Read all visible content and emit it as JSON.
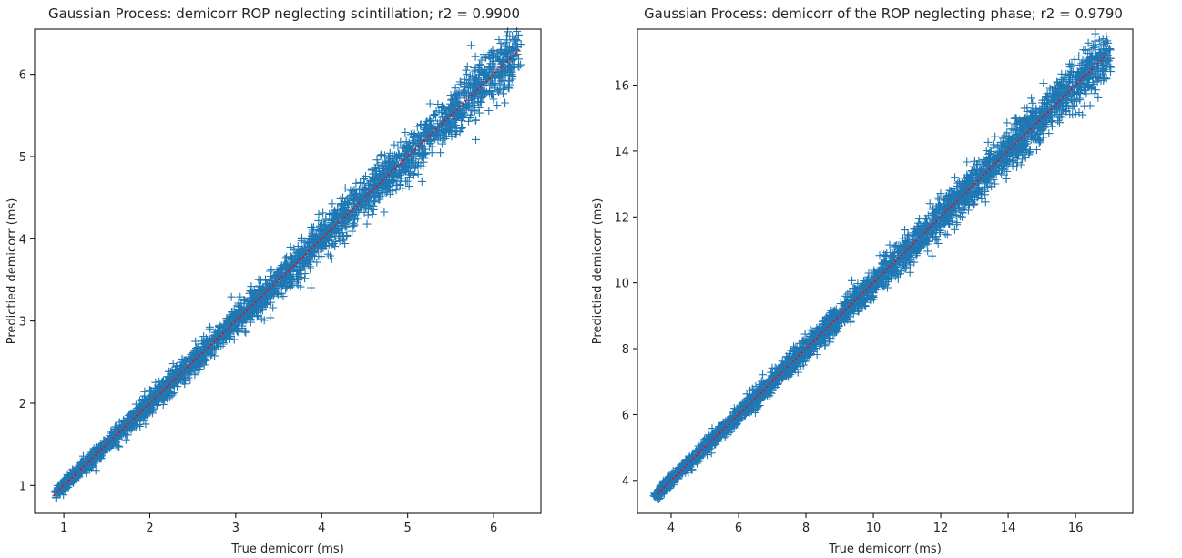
{
  "chart_data": [
    {
      "type": "scatter",
      "title": "Gaussian Process: demicorr ROP neglecting scintillation; r2 =  0.9900",
      "xlabel": "True demicorr (ms)",
      "ylabel": "Predictied demicorr (ms)",
      "xlim": [
        0.66,
        6.55
      ],
      "ylim": [
        0.66,
        6.55
      ],
      "xticks": [
        1,
        2,
        3,
        4,
        5,
        6
      ],
      "yticks": [
        1,
        2,
        3,
        4,
        5,
        6
      ],
      "grid": false,
      "marker": "+",
      "series": [
        {
          "color": "#1f77b4",
          "range": [
            0.93,
            6.28
          ],
          "description_points": "dense diagonal cloud",
          "point_count": 3200,
          "spread": 0.1
        }
      ],
      "reference_line": {
        "from": [
          0.88,
          0.88
        ],
        "to": [
          6.3,
          6.3
        ],
        "color": "#ff0000",
        "style": "dotted"
      }
    },
    {
      "type": "scatter",
      "title": "Gaussian Process: demicorr of the ROP neglecting phase; r2 =  0.9790",
      "xlabel": "True demicorr (ms)",
      "ylabel": "Predictied demicorr (ms)",
      "xlim": [
        3.0,
        17.7
      ],
      "ylim": [
        3.0,
        17.7
      ],
      "xticks": [
        4,
        6,
        8,
        10,
        12,
        14,
        16
      ],
      "yticks": [
        4,
        6,
        8,
        10,
        12,
        14,
        16
      ],
      "grid": false,
      "marker": "+",
      "series": [
        {
          "color": "#1f77b4",
          "range": [
            3.6,
            17.0
          ],
          "point_count": 3600,
          "spread": 0.22
        }
      ],
      "reference_line": {
        "from": [
          3.6,
          3.6
        ],
        "to": [
          16.9,
          16.9
        ],
        "color": "#ff0000",
        "style": "dotted"
      }
    }
  ]
}
